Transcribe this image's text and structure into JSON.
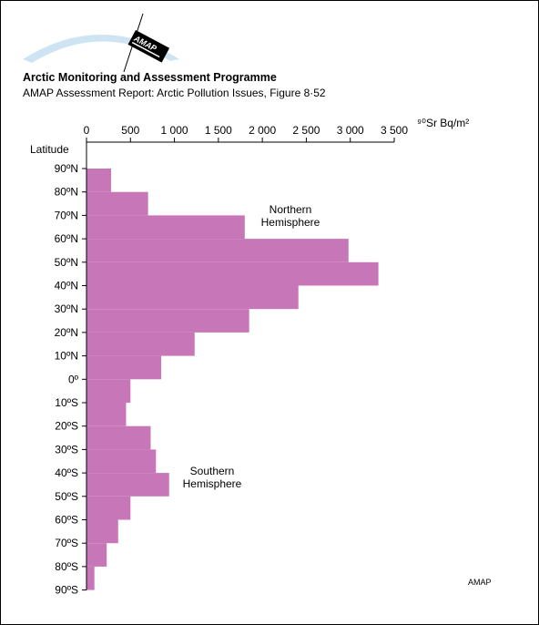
{
  "header": {
    "logo_text": "AMAP",
    "title": "Arctic Monitoring and Assessment Programme",
    "subtitle": "AMAP Assessment Report: Arctic Pollution Issues, Figure 8·52"
  },
  "footer": {
    "credit": "AMAP"
  },
  "colors": {
    "bar": "#c777b8",
    "axis": "#000000",
    "background": "#ffffff"
  },
  "chart_data": {
    "type": "bar",
    "orientation": "horizontal",
    "x_axis_label": "⁹⁰Sr Bq/m²",
    "y_axis_label": "Latitude",
    "x_ticks": [
      "0",
      "500",
      "1 000",
      "1 500",
      "2 000",
      "2 500",
      "3 000",
      "3 500"
    ],
    "xlim": [
      0,
      3500
    ],
    "y_ticks": [
      "90ºN",
      "80ºN",
      "70ºN",
      "60ºN",
      "50ºN",
      "40ºN",
      "30ºN",
      "20ºN",
      "10ºN",
      "0º",
      "10ºS",
      "20ºS",
      "30ºS",
      "40ºS",
      "50ºS",
      "60ºS",
      "70ºS",
      "80ºS",
      "90ºS"
    ],
    "bands": [
      {
        "from": "90ºN",
        "to": "80ºN",
        "value": 280
      },
      {
        "from": "80ºN",
        "to": "70ºN",
        "value": 700
      },
      {
        "from": "70ºN",
        "to": "60ºN",
        "value": 1800
      },
      {
        "from": "60ºN",
        "to": "50ºN",
        "value": 2980
      },
      {
        "from": "50ºN",
        "to": "40ºN",
        "value": 3320
      },
      {
        "from": "40ºN",
        "to": "30ºN",
        "value": 2410
      },
      {
        "from": "30ºN",
        "to": "20ºN",
        "value": 1850
      },
      {
        "from": "20ºN",
        "to": "10ºN",
        "value": 1230
      },
      {
        "from": "10ºN",
        "to": "0º",
        "value": 850
      },
      {
        "from": "0º",
        "to": "10ºS",
        "value": 500
      },
      {
        "from": "10ºS",
        "to": "20ºS",
        "value": 450
      },
      {
        "from": "20ºS",
        "to": "30ºS",
        "value": 730
      },
      {
        "from": "30ºS",
        "to": "40ºS",
        "value": 790
      },
      {
        "from": "40ºS",
        "to": "50ºS",
        "value": 940
      },
      {
        "from": "50ºS",
        "to": "60ºS",
        "value": 500
      },
      {
        "from": "60ºS",
        "to": "70ºS",
        "value": 360
      },
      {
        "from": "70ºS",
        "to": "80ºS",
        "value": 230
      },
      {
        "from": "80ºS",
        "to": "90ºS",
        "value": 90
      }
    ],
    "annotations": [
      {
        "label": "Northern Hemisphere",
        "lines": [
          "Northern",
          "Hemisphere"
        ]
      },
      {
        "label": "Southern Hemisphere",
        "lines": [
          "Southern",
          "Hemisphere"
        ]
      }
    ],
    "grid": false
  }
}
